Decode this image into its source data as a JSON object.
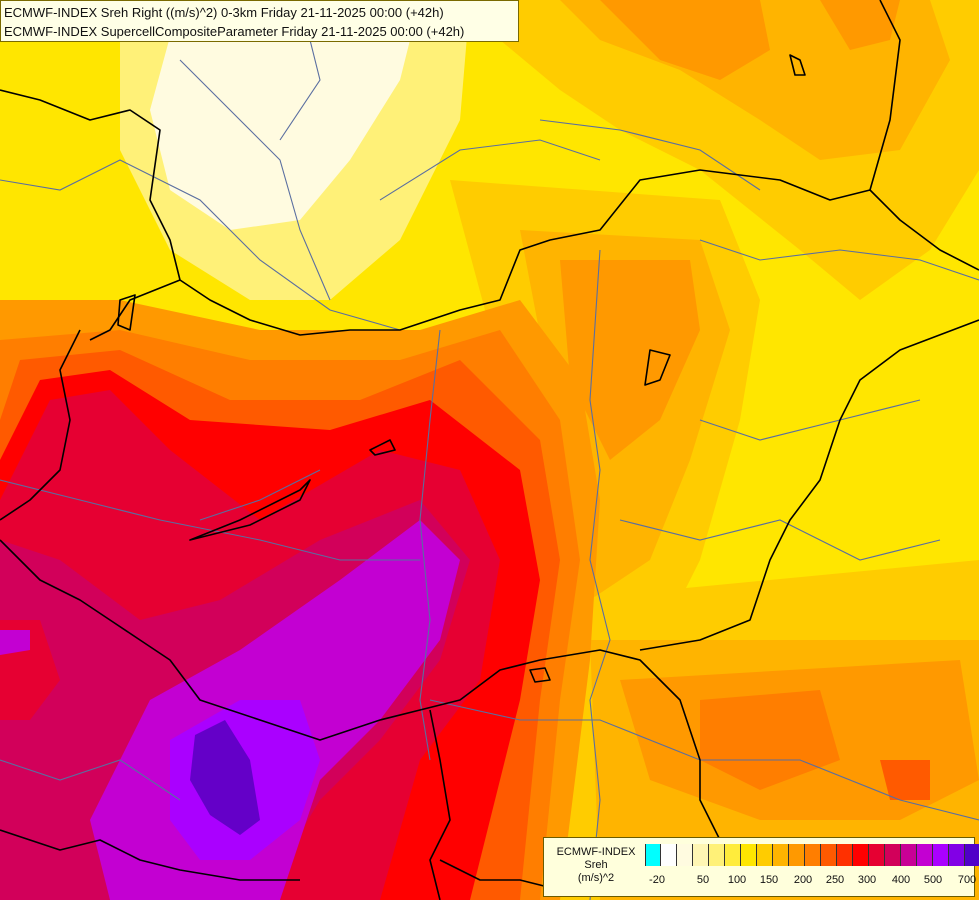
{
  "header": {
    "line1": "ECMWF-INDEX Sreh Right ((m/s)^2) 0-3km Friday 21-11-2025 00:00 (+42h)",
    "line2": "ECMWF-INDEX SupercellCompositeParameter Friday 21-11-2025 00:00 (+42h)"
  },
  "legend": {
    "title_line1": "ECMWF-INDEX",
    "title_line2": "Sreh",
    "title_line3": "(m/s)^2",
    "colors": [
      "#00ffff",
      "#ffffff",
      "#fffbe0",
      "#fff6b4",
      "#fff178",
      "#ffec3c",
      "#ffe600",
      "#ffcc00",
      "#ffb400",
      "#ff9900",
      "#ff7e00",
      "#ff5a00",
      "#ff3000",
      "#ff0000",
      "#e60032",
      "#d2005a",
      "#c80096",
      "#c300d2",
      "#aa00ff",
      "#8200e6",
      "#5000c8",
      "#0a0096"
    ],
    "ticks": [
      "-20",
      "50",
      "100",
      "150",
      "200",
      "250",
      "300",
      "400",
      "500",
      "700"
    ]
  },
  "map": {
    "field_colors": {
      "pale": "#fffbe0",
      "light_yellow": "#fff178",
      "yellow": "#ffe600",
      "gold": "#ffcc00",
      "orange_light": "#ffb400",
      "orange": "#ff9900",
      "orange_dark": "#ff7e00",
      "red_orange": "#ff5a00",
      "red": "#ff0000",
      "crimson": "#e60032",
      "magenta": "#d2005a",
      "purple": "#c300d2",
      "violet": "#aa00ff",
      "indigo": "#6400c8"
    },
    "border_color": "#000000",
    "river_color": "#5a6ea0"
  }
}
